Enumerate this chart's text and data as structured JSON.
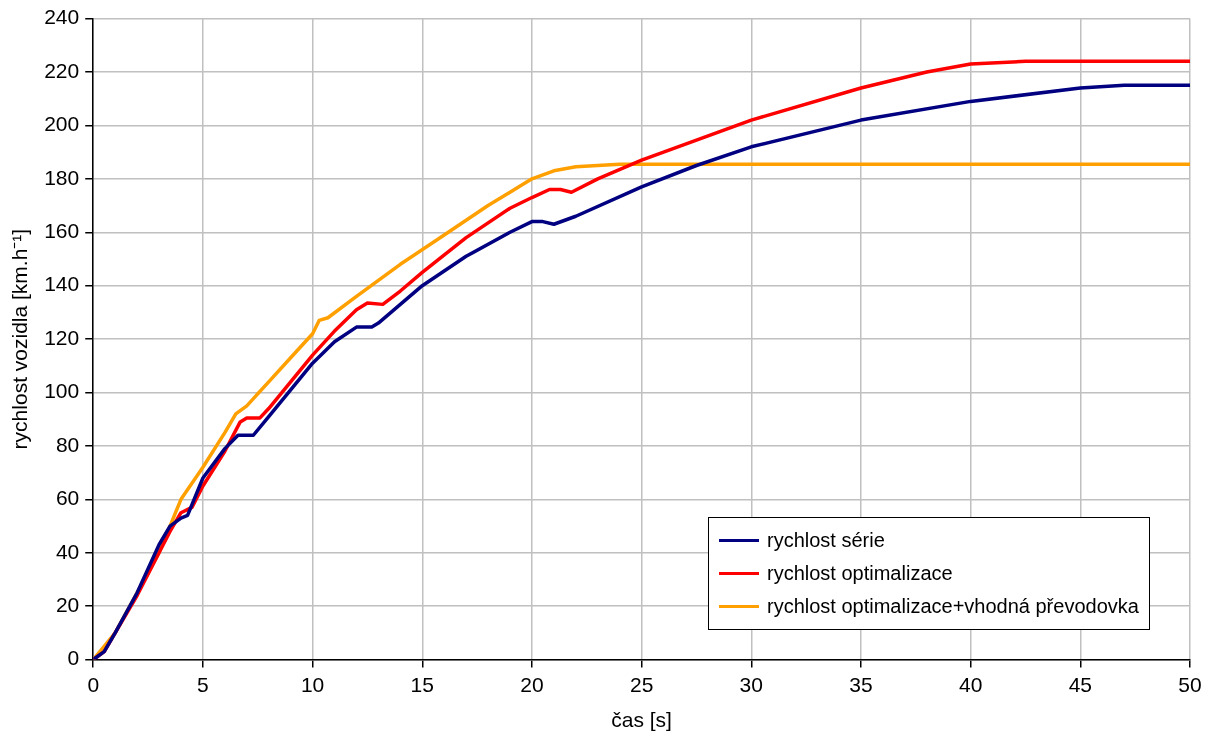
{
  "chart_data": {
    "type": "line",
    "xlabel": "čas [s]",
    "ylabel": "rychlost vozidla [km.h⁻¹]",
    "xlim": [
      0,
      50
    ],
    "xticks": [
      0,
      5,
      10,
      15,
      20,
      25,
      30,
      35,
      40,
      45,
      50
    ],
    "ylim": [
      0,
      240
    ],
    "yticks": [
      0,
      20,
      40,
      60,
      80,
      100,
      120,
      140,
      160,
      180,
      200,
      220,
      240
    ],
    "grid": true,
    "legend": "bottom right",
    "marker": "none",
    "line_style": "solid",
    "series": [
      {
        "name": "rychlost série",
        "color": "#000080",
        "x": [
          0,
          0.5,
          1,
          2,
          3,
          3.5,
          4,
          4.3,
          5,
          6,
          6.6,
          7.3,
          8,
          9,
          10,
          11,
          12,
          12.7,
          13,
          15,
          17,
          19,
          20,
          20.5,
          21,
          22,
          25,
          27.5,
          30,
          35,
          40,
          45,
          47,
          50
        ],
        "values": [
          0,
          3,
          10,
          25,
          43,
          50,
          53,
          54,
          68,
          79,
          84,
          84,
          91,
          101,
          111,
          119,
          124.5,
          124.5,
          126,
          140,
          151,
          160,
          164,
          164,
          163,
          166,
          177,
          185,
          192,
          202,
          209,
          214,
          215,
          215
        ]
      },
      {
        "name": "rychlost optimalizace",
        "color": "#ff0000",
        "x": [
          0,
          0.5,
          1,
          2,
          3,
          3.5,
          4,
          4.5,
          5,
          6,
          6.7,
          7,
          7.6,
          8,
          9,
          10,
          11,
          12,
          12.5,
          13.2,
          14,
          15,
          17,
          19,
          20,
          20.8,
          21.3,
          21.8,
          23,
          25,
          30,
          35,
          38,
          40,
          42.5,
          50
        ],
        "values": [
          0,
          3,
          10,
          24,
          40,
          48,
          55,
          57,
          65,
          78,
          89,
          90.5,
          90.5,
          94,
          104,
          114,
          123,
          131,
          133.5,
          133,
          138,
          145,
          158,
          169,
          173,
          176,
          176,
          175,
          180,
          187,
          202,
          214,
          220,
          223,
          224,
          224
        ]
      },
      {
        "name": "rychlost optimalizace+vhodná převodovka",
        "color": "#ffa000",
        "x": [
          0,
          1,
          2,
          3,
          3.5,
          4,
          5,
          6,
          6.5,
          7,
          8,
          9,
          10,
          10.3,
          10.7,
          12,
          14,
          16,
          18,
          19,
          20,
          21,
          22,
          23,
          24,
          30,
          50
        ],
        "values": [
          0,
          10,
          25,
          40,
          50,
          60,
          72,
          85,
          92,
          95,
          104,
          113,
          122,
          127,
          128,
          136,
          148,
          159,
          170,
          175,
          180,
          183,
          184.5,
          185,
          185.5,
          185.5,
          185.5
        ]
      }
    ]
  }
}
